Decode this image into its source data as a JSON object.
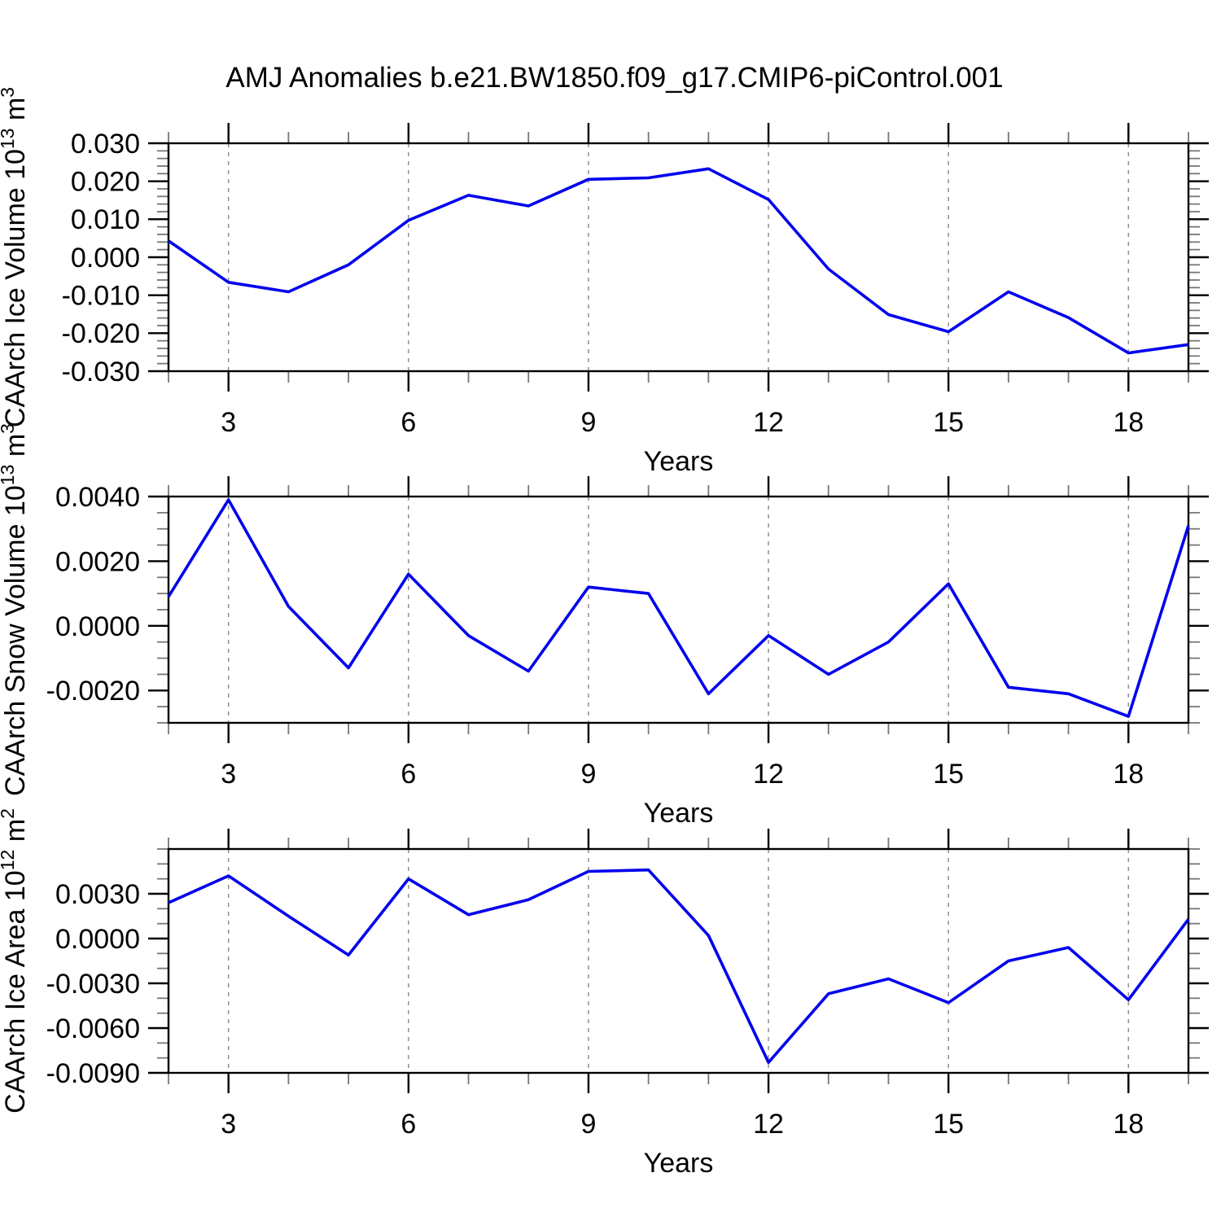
{
  "page": {
    "title": "AMJ Anomalies b.e21.BW1850.f09_g17.CMIP6-piControl.001",
    "background": "#ffffff"
  },
  "style": {
    "line_color": "#0000ee",
    "frame_color": "#000000",
    "grid_color": "#909090",
    "major_tick_color": "#000000",
    "minor_tick_color": "#777777",
    "text_color": "#000000"
  },
  "chart_data": [
    {
      "type": "line",
      "series_name": "CAArch Ice Volume anomaly",
      "xlabel": "Years",
      "ylabel_parts": [
        {
          "text": "CAArch Ice Volume 10",
          "sup": false
        },
        {
          "text": "13",
          "sup": true
        },
        {
          "text": " m",
          "sup": false
        },
        {
          "text": "3",
          "sup": true
        }
      ],
      "x": [
        2,
        3,
        4,
        5,
        6,
        7,
        8,
        9,
        10,
        11,
        12,
        13,
        14,
        15,
        16,
        17,
        18,
        19
      ],
      "values": [
        0.0043,
        -0.0066,
        -0.0091,
        -0.002,
        0.0097,
        0.0163,
        0.0135,
        0.0205,
        0.0209,
        0.0233,
        0.0152,
        -0.0031,
        -0.0151,
        -0.0196,
        -0.0091,
        -0.0159,
        -0.0252,
        -0.023
      ],
      "xlim": [
        2,
        19
      ],
      "ylim": [
        -0.03,
        0.03
      ],
      "ytick_values": [
        0.03,
        0.02,
        0.01,
        0.0,
        -0.01,
        -0.02,
        -0.03
      ],
      "ytick_labels": [
        "0.030",
        "0.020",
        "0.010",
        "0.000",
        "-0.010",
        "-0.020",
        "-0.030"
      ],
      "yminor_step": 0.002,
      "xtick_values": [
        3,
        6,
        9,
        12,
        15,
        18
      ],
      "xtick_labels": [
        "3",
        "6",
        "9",
        "12",
        "15",
        "18"
      ],
      "xminor_step": 1,
      "grid": "vertical-dashed",
      "legend": "none"
    },
    {
      "type": "line",
      "series_name": "CAArch Snow Volume anomaly",
      "xlabel": "Years",
      "ylabel_parts": [
        {
          "text": "CAArch Snow Volume 10",
          "sup": false
        },
        {
          "text": "13",
          "sup": true
        },
        {
          "text": " m",
          "sup": false
        },
        {
          "text": "3",
          "sup": true
        }
      ],
      "x": [
        2,
        3,
        4,
        5,
        6,
        7,
        8,
        9,
        10,
        11,
        12,
        13,
        14,
        15,
        16,
        17,
        18,
        19
      ],
      "values": [
        0.0009,
        0.0039,
        0.0006,
        -0.0013,
        0.0016,
        -0.0003,
        -0.0014,
        0.0012,
        0.001,
        -0.0021,
        -0.0003,
        -0.0015,
        -0.0005,
        0.0013,
        -0.0019,
        -0.0021,
        -0.0028,
        0.0031
      ],
      "xlim": [
        2,
        19
      ],
      "ylim": [
        -0.003,
        0.004
      ],
      "ytick_values": [
        0.004,
        0.002,
        0.0,
        -0.002
      ],
      "ytick_labels": [
        "0.0040",
        "0.0020",
        "0.0000",
        "-0.0020"
      ],
      "yminor_step": 0.0005,
      "xtick_values": [
        3,
        6,
        9,
        12,
        15,
        18
      ],
      "xtick_labels": [
        "3",
        "6",
        "9",
        "12",
        "15",
        "18"
      ],
      "xminor_step": 1,
      "grid": "vertical-dashed",
      "legend": "none"
    },
    {
      "type": "line",
      "series_name": "CAArch Ice Area anomaly",
      "xlabel": "Years",
      "ylabel_parts": [
        {
          "text": "CAArch Ice Area 10",
          "sup": false
        },
        {
          "text": "12",
          "sup": true
        },
        {
          "text": " m",
          "sup": false
        },
        {
          "text": "2",
          "sup": true
        }
      ],
      "x": [
        2,
        3,
        4,
        5,
        6,
        7,
        8,
        9,
        10,
        11,
        12,
        13,
        14,
        15,
        16,
        17,
        18,
        19
      ],
      "values": [
        0.0024,
        0.0042,
        0.0015,
        -0.0011,
        0.004,
        0.0016,
        0.0026,
        0.0045,
        0.0046,
        0.0002,
        -0.0083,
        -0.0037,
        -0.0027,
        -0.0043,
        -0.0015,
        -0.0006,
        -0.0041,
        0.0013
      ],
      "xlim": [
        2,
        19
      ],
      "ylim": [
        -0.009,
        0.006
      ],
      "ytick_values": [
        0.003,
        0.0,
        -0.003,
        -0.006,
        -0.009
      ],
      "ytick_labels": [
        "0.0030",
        "0.0000",
        "-0.0030",
        "-0.0060",
        "-0.0090"
      ],
      "yminor_step": 0.001,
      "xtick_values": [
        3,
        6,
        9,
        12,
        15,
        18
      ],
      "xtick_labels": [
        "3",
        "6",
        "9",
        "12",
        "15",
        "18"
      ],
      "xminor_step": 1,
      "grid": "vertical-dashed",
      "legend": "none"
    }
  ]
}
